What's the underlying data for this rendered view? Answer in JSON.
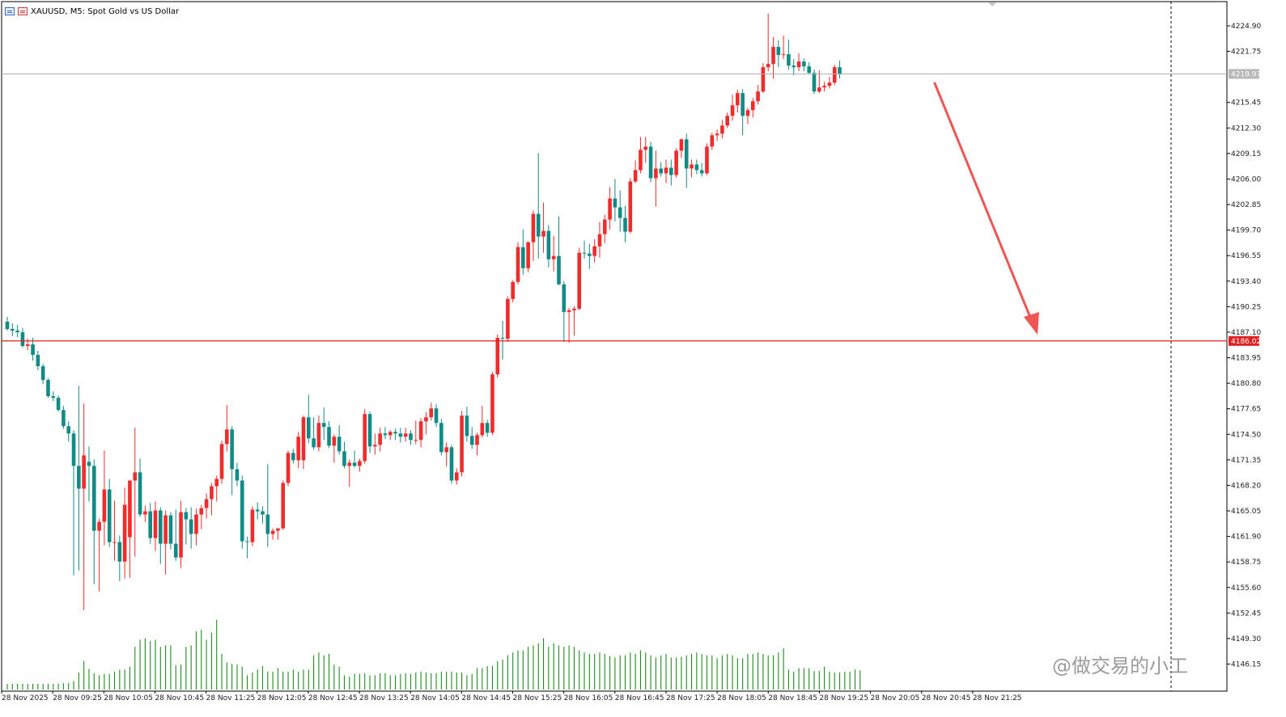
{
  "window": {
    "title": "XAUUSD, M5:  Spot Gold vs US Dollar"
  },
  "colors": {
    "bull": "#ef2b2b",
    "bear": "#128a86",
    "volume": "#1e8c1e",
    "price_line": "#e02020",
    "arrow": "#f05555",
    "current_line": "#b0b0b0",
    "current_tag_bg": "#b8b8b8"
  },
  "price_axis": {
    "labels": [
      "4224.90",
      "4221.75",
      "4215.45",
      "4212.30",
      "4209.15",
      "4206.00",
      "4202.85",
      "4199.70",
      "4196.55",
      "4193.40",
      "4190.25",
      "4187.10",
      "4183.95",
      "4180.80",
      "4177.65",
      "4174.50",
      "4171.35",
      "4168.20",
      "4165.05",
      "4161.90",
      "4158.75",
      "4155.60",
      "4152.45",
      "4149.30",
      "4146.15"
    ]
  },
  "time_axis": {
    "labels": [
      "28 Nov 2025",
      "28 Nov 09:25",
      "28 Nov 10:05",
      "28 Nov 10:45",
      "28 Nov 11:25",
      "28 Nov 12:05",
      "28 Nov 12:45",
      "28 Nov 13:25",
      "28 Nov 14:05",
      "28 Nov 14:45",
      "28 Nov 15:25",
      "28 Nov 16:05",
      "28 Nov 16:45",
      "28 Nov 17:25",
      "28 Nov 18:05",
      "28 Nov 18:45",
      "28 Nov 19:25",
      "28 Nov 20:05",
      "28 Nov 20:45",
      "28 Nov 21:25"
    ]
  },
  "levels": {
    "horizontal_line_price": "4186.02",
    "current_price": "4218.97"
  },
  "watermark": "@做交易的小工",
  "chart_data": {
    "type": "candlestick",
    "symbol": "XAUUSD",
    "timeframe": "M5",
    "ylim": [
      4146.0,
      4226.5
    ],
    "candles": [
      {
        "o": 4188.4,
        "h": 4189.0,
        "l": 4187.3,
        "c": 4187.5
      },
      {
        "o": 4187.5,
        "h": 4188.2,
        "l": 4186.6,
        "c": 4187.3
      },
      {
        "o": 4187.3,
        "h": 4188.0,
        "l": 4186.5,
        "c": 4187.1
      },
      {
        "o": 4187.1,
        "h": 4187.6,
        "l": 4185.2,
        "c": 4185.4
      },
      {
        "o": 4185.4,
        "h": 4186.3,
        "l": 4184.9,
        "c": 4185.6
      },
      {
        "o": 4185.6,
        "h": 4186.4,
        "l": 4183.6,
        "c": 4184.3
      },
      {
        "o": 4184.3,
        "h": 4184.8,
        "l": 4182.4,
        "c": 4182.9
      },
      {
        "o": 4182.9,
        "h": 4183.2,
        "l": 4180.7,
        "c": 4181.2
      },
      {
        "o": 4181.2,
        "h": 4181.4,
        "l": 4179.0,
        "c": 4179.2
      },
      {
        "o": 4179.2,
        "h": 4179.8,
        "l": 4178.6,
        "c": 4179.0
      },
      {
        "o": 4179.0,
        "h": 4179.3,
        "l": 4177.3,
        "c": 4177.5
      },
      {
        "o": 4177.5,
        "h": 4178.0,
        "l": 4175.2,
        "c": 4175.5
      },
      {
        "o": 4175.5,
        "h": 4176.1,
        "l": 4173.6,
        "c": 4174.6
      },
      {
        "o": 4174.6,
        "h": 4175.0,
        "l": 4157.1,
        "c": 4170.6
      },
      {
        "o": 4170.6,
        "h": 4180.5,
        "l": 4157.7,
        "c": 4167.8
      },
      {
        "o": 4167.8,
        "h": 4178.3,
        "l": 4152.8,
        "c": 4171.9
      },
      {
        "o": 4171.1,
        "h": 4173.0,
        "l": 4166.2,
        "c": 4170.6
      },
      {
        "o": 4170.6,
        "h": 4171.4,
        "l": 4156.0,
        "c": 4162.6
      },
      {
        "o": 4162.6,
        "h": 4164.1,
        "l": 4155.1,
        "c": 4163.7
      },
      {
        "o": 4163.7,
        "h": 4172.5,
        "l": 4160.8,
        "c": 4167.7
      },
      {
        "o": 4167.7,
        "h": 4169.0,
        "l": 4160.6,
        "c": 4161.2
      },
      {
        "o": 4161.2,
        "h": 4166.3,
        "l": 4158.9,
        "c": 4161.2
      },
      {
        "o": 4161.2,
        "h": 4162.0,
        "l": 4156.4,
        "c": 4158.8
      },
      {
        "o": 4158.8,
        "h": 4167.9,
        "l": 4156.7,
        "c": 4165.8
      },
      {
        "o": 4161.8,
        "h": 4168.0,
        "l": 4156.8,
        "c": 4168.8
      },
      {
        "o": 4168.8,
        "h": 4175.3,
        "l": 4159.4,
        "c": 4169.8
      },
      {
        "o": 4169.8,
        "h": 4171.5,
        "l": 4164.3,
        "c": 4164.6
      },
      {
        "o": 4164.6,
        "h": 4165.7,
        "l": 4163.7,
        "c": 4165.0
      },
      {
        "o": 4165.0,
        "h": 4166.0,
        "l": 4161.0,
        "c": 4161.7
      },
      {
        "o": 4161.7,
        "h": 4166.2,
        "l": 4160.1,
        "c": 4165.1
      },
      {
        "o": 4165.1,
        "h": 4165.5,
        "l": 4158.5,
        "c": 4161.0
      },
      {
        "o": 4161.0,
        "h": 4165.1,
        "l": 4157.2,
        "c": 4164.5
      },
      {
        "o": 4164.5,
        "h": 4164.9,
        "l": 4160.3,
        "c": 4161.0
      },
      {
        "o": 4161.0,
        "h": 4165.2,
        "l": 4158.9,
        "c": 4159.3
      },
      {
        "o": 4159.3,
        "h": 4166.3,
        "l": 4158.0,
        "c": 4164.9
      },
      {
        "o": 4164.9,
        "h": 4165.4,
        "l": 4160.9,
        "c": 4164.0
      },
      {
        "o": 4164.0,
        "h": 4165.5,
        "l": 4160.4,
        "c": 4162.2
      },
      {
        "o": 4162.2,
        "h": 4165.3,
        "l": 4160.8,
        "c": 4164.6
      },
      {
        "o": 4164.6,
        "h": 4165.8,
        "l": 4162.8,
        "c": 4165.4
      },
      {
        "o": 4165.4,
        "h": 4167.2,
        "l": 4164.1,
        "c": 4166.5
      },
      {
        "o": 4166.5,
        "h": 4168.5,
        "l": 4164.5,
        "c": 4168.1
      },
      {
        "o": 4168.1,
        "h": 4169.4,
        "l": 4166.2,
        "c": 4169.0
      },
      {
        "o": 4169.0,
        "h": 4173.7,
        "l": 4168.4,
        "c": 4173.3
      },
      {
        "o": 4173.3,
        "h": 4178.1,
        "l": 4172.4,
        "c": 4175.1
      },
      {
        "o": 4175.1,
        "h": 4175.5,
        "l": 4167.0,
        "c": 4170.2
      },
      {
        "o": 4170.2,
        "h": 4171.0,
        "l": 4168.1,
        "c": 4168.8
      },
      {
        "o": 4168.8,
        "h": 4169.4,
        "l": 4160.4,
        "c": 4161.3
      },
      {
        "o": 4161.3,
        "h": 4161.9,
        "l": 4159.2,
        "c": 4161.2
      },
      {
        "o": 4161.2,
        "h": 4165.6,
        "l": 4160.7,
        "c": 4165.2
      },
      {
        "o": 4165.2,
        "h": 4166.1,
        "l": 4164.0,
        "c": 4165.0
      },
      {
        "o": 4165.0,
        "h": 4165.6,
        "l": 4163.5,
        "c": 4164.6
      },
      {
        "o": 4164.6,
        "h": 4170.8,
        "l": 4160.6,
        "c": 4162.2
      },
      {
        "o": 4162.2,
        "h": 4162.9,
        "l": 4161.5,
        "c": 4162.6
      },
      {
        "o": 4162.6,
        "h": 4162.9,
        "l": 4161.5,
        "c": 4162.9
      },
      {
        "o": 4162.9,
        "h": 4168.8,
        "l": 4162.7,
        "c": 4168.5
      },
      {
        "o": 4168.5,
        "h": 4172.5,
        "l": 4168.1,
        "c": 4172.2
      },
      {
        "o": 4172.2,
        "h": 4172.7,
        "l": 4170.9,
        "c": 4171.3
      },
      {
        "o": 4171.3,
        "h": 4174.8,
        "l": 4170.3,
        "c": 4174.2
      },
      {
        "o": 4171.3,
        "h": 4176.8,
        "l": 4170.2,
        "c": 4176.6
      },
      {
        "o": 4176.6,
        "h": 4179.4,
        "l": 4173.4,
        "c": 4174.0
      },
      {
        "o": 4174.0,
        "h": 4176.6,
        "l": 4172.6,
        "c": 4172.9
      },
      {
        "o": 4172.9,
        "h": 4176.8,
        "l": 4172.4,
        "c": 4175.9
      },
      {
        "o": 4175.9,
        "h": 4177.8,
        "l": 4173.8,
        "c": 4175.4
      },
      {
        "o": 4175.4,
        "h": 4176.1,
        "l": 4172.8,
        "c": 4173.1
      },
      {
        "o": 4173.1,
        "h": 4174.5,
        "l": 4171.0,
        "c": 4174.2
      },
      {
        "o": 4174.2,
        "h": 4175.6,
        "l": 4172.0,
        "c": 4172.4
      },
      {
        "o": 4172.4,
        "h": 4173.6,
        "l": 4170.3,
        "c": 4170.6
      },
      {
        "o": 4170.6,
        "h": 4171.4,
        "l": 4168.0,
        "c": 4171.0
      },
      {
        "o": 4171.0,
        "h": 4172.5,
        "l": 4170.4,
        "c": 4170.6
      },
      {
        "o": 4170.6,
        "h": 4171.5,
        "l": 4169.9,
        "c": 4171.2
      },
      {
        "o": 4171.2,
        "h": 4177.6,
        "l": 4170.9,
        "c": 4177.0
      },
      {
        "o": 4177.0,
        "h": 4177.3,
        "l": 4172.2,
        "c": 4173.0
      },
      {
        "o": 4173.0,
        "h": 4174.6,
        "l": 4172.0,
        "c": 4173.2
      },
      {
        "o": 4173.2,
        "h": 4175.3,
        "l": 4172.4,
        "c": 4174.6
      },
      {
        "o": 4174.6,
        "h": 4175.4,
        "l": 4173.9,
        "c": 4174.4
      },
      {
        "o": 4174.4,
        "h": 4175.0,
        "l": 4173.8,
        "c": 4174.8
      },
      {
        "o": 4174.8,
        "h": 4175.2,
        "l": 4173.8,
        "c": 4174.6
      },
      {
        "o": 4174.6,
        "h": 4175.3,
        "l": 4173.5,
        "c": 4174.2
      },
      {
        "o": 4174.2,
        "h": 4175.3,
        "l": 4173.6,
        "c": 4174.6
      },
      {
        "o": 4174.6,
        "h": 4175.0,
        "l": 4173.2,
        "c": 4173.8
      },
      {
        "o": 4173.8,
        "h": 4176.2,
        "l": 4173.3,
        "c": 4173.8
      },
      {
        "o": 4173.8,
        "h": 4176.5,
        "l": 4172.9,
        "c": 4176.1
      },
      {
        "o": 4176.1,
        "h": 4177.2,
        "l": 4174.5,
        "c": 4176.6
      },
      {
        "o": 4176.6,
        "h": 4178.4,
        "l": 4176.2,
        "c": 4177.7
      },
      {
        "o": 4177.7,
        "h": 4178.2,
        "l": 4175.4,
        "c": 4175.9
      },
      {
        "o": 4175.9,
        "h": 4176.4,
        "l": 4171.9,
        "c": 4172.3
      },
      {
        "o": 4172.3,
        "h": 4173.5,
        "l": 4170.5,
        "c": 4172.9
      },
      {
        "o": 4172.9,
        "h": 4173.2,
        "l": 4168.4,
        "c": 4168.8
      },
      {
        "o": 4168.8,
        "h": 4170.3,
        "l": 4168.3,
        "c": 4169.8
      },
      {
        "o": 4169.8,
        "h": 4177.4,
        "l": 4169.3,
        "c": 4176.8
      },
      {
        "o": 4176.8,
        "h": 4177.9,
        "l": 4173.6,
        "c": 4174.3
      },
      {
        "o": 4174.3,
        "h": 4175.4,
        "l": 4172.7,
        "c": 4173.2
      },
      {
        "o": 4173.2,
        "h": 4174.7,
        "l": 4171.9,
        "c": 4174.4
      },
      {
        "o": 4174.4,
        "h": 4178.0,
        "l": 4174.1,
        "c": 4175.9
      },
      {
        "o": 4175.9,
        "h": 4176.3,
        "l": 4174.2,
        "c": 4174.7
      },
      {
        "o": 4174.7,
        "h": 4182.2,
        "l": 4174.4,
        "c": 4181.9
      },
      {
        "o": 4181.9,
        "h": 4186.8,
        "l": 4181.5,
        "c": 4186.4
      },
      {
        "o": 4186.4,
        "h": 4188.5,
        "l": 4183.7,
        "c": 4186.3
      },
      {
        "o": 4186.3,
        "h": 4191.5,
        "l": 4185.9,
        "c": 4191.2
      },
      {
        "o": 4191.2,
        "h": 4193.5,
        "l": 4190.8,
        "c": 4193.3
      },
      {
        "o": 4193.3,
        "h": 4198.2,
        "l": 4193.0,
        "c": 4197.6
      },
      {
        "o": 4197.6,
        "h": 4199.8,
        "l": 4194.2,
        "c": 4195.0
      },
      {
        "o": 4195.0,
        "h": 4198.3,
        "l": 4194.5,
        "c": 4198.2
      },
      {
        "o": 4198.2,
        "h": 4202.1,
        "l": 4195.9,
        "c": 4201.7
      },
      {
        "o": 4201.7,
        "h": 4209.2,
        "l": 4196.2,
        "c": 4198.9
      },
      {
        "o": 4198.9,
        "h": 4203.1,
        "l": 4196.9,
        "c": 4199.6
      },
      {
        "o": 4199.6,
        "h": 4200.3,
        "l": 4195.1,
        "c": 4196.1
      },
      {
        "o": 4196.1,
        "h": 4199.0,
        "l": 4194.6,
        "c": 4196.5
      },
      {
        "o": 4196.5,
        "h": 4201.4,
        "l": 4192.9,
        "c": 4193.0
      },
      {
        "o": 4193.0,
        "h": 4193.4,
        "l": 4185.9,
        "c": 4189.6
      },
      {
        "o": 4189.6,
        "h": 4190.1,
        "l": 4185.8,
        "c": 4189.8
      },
      {
        "o": 4189.8,
        "h": 4190.3,
        "l": 4186.7,
        "c": 4190.0
      },
      {
        "o": 4190.0,
        "h": 4197.5,
        "l": 4189.8,
        "c": 4196.9
      },
      {
        "o": 4196.9,
        "h": 4198.4,
        "l": 4196.2,
        "c": 4196.8
      },
      {
        "o": 4196.8,
        "h": 4198.0,
        "l": 4194.9,
        "c": 4196.5
      },
      {
        "o": 4196.5,
        "h": 4198.6,
        "l": 4195.7,
        "c": 4197.7
      },
      {
        "o": 4197.7,
        "h": 4200.7,
        "l": 4196.3,
        "c": 4199.2
      },
      {
        "o": 4199.2,
        "h": 4201.6,
        "l": 4198.1,
        "c": 4201.0
      },
      {
        "o": 4201.0,
        "h": 4205.0,
        "l": 4199.8,
        "c": 4203.6
      },
      {
        "o": 4203.6,
        "h": 4206.0,
        "l": 4200.8,
        "c": 4202.5
      },
      {
        "o": 4202.5,
        "h": 4204.6,
        "l": 4199.5,
        "c": 4201.2
      },
      {
        "o": 4201.2,
        "h": 4202.7,
        "l": 4198.2,
        "c": 4199.5
      },
      {
        "o": 4199.5,
        "h": 4206.1,
        "l": 4199.3,
        "c": 4205.7
      },
      {
        "o": 4205.7,
        "h": 4208.3,
        "l": 4205.5,
        "c": 4207.1
      },
      {
        "o": 4207.1,
        "h": 4211.2,
        "l": 4206.7,
        "c": 4209.6
      },
      {
        "o": 4209.6,
        "h": 4211.2,
        "l": 4208.0,
        "c": 4210.0
      },
      {
        "o": 4210.0,
        "h": 4210.6,
        "l": 4205.6,
        "c": 4206.1
      },
      {
        "o": 4206.1,
        "h": 4209.5,
        "l": 4202.6,
        "c": 4207.3
      },
      {
        "o": 4207.3,
        "h": 4208.1,
        "l": 4206.3,
        "c": 4206.7
      },
      {
        "o": 4206.7,
        "h": 4208.4,
        "l": 4205.5,
        "c": 4207.4
      },
      {
        "o": 4207.4,
        "h": 4208.4,
        "l": 4205.2,
        "c": 4206.5
      },
      {
        "o": 4206.5,
        "h": 4209.8,
        "l": 4206.2,
        "c": 4209.5
      },
      {
        "o": 4209.5,
        "h": 4211.0,
        "l": 4208.6,
        "c": 4210.9
      },
      {
        "o": 4210.9,
        "h": 4211.6,
        "l": 4204.9,
        "c": 4207.3
      },
      {
        "o": 4207.3,
        "h": 4208.4,
        "l": 4206.2,
        "c": 4207.8
      },
      {
        "o": 4207.8,
        "h": 4208.4,
        "l": 4206.6,
        "c": 4207.1
      },
      {
        "o": 4207.1,
        "h": 4208.0,
        "l": 4206.3,
        "c": 4206.7
      },
      {
        "o": 4206.7,
        "h": 4210.4,
        "l": 4206.5,
        "c": 4210.0
      },
      {
        "o": 4210.0,
        "h": 4211.7,
        "l": 4209.6,
        "c": 4211.4
      },
      {
        "o": 4211.4,
        "h": 4212.1,
        "l": 4210.7,
        "c": 4211.6
      },
      {
        "o": 4211.6,
        "h": 4213.3,
        "l": 4211.0,
        "c": 4212.6
      },
      {
        "o": 4212.6,
        "h": 4214.2,
        "l": 4212.3,
        "c": 4213.8
      },
      {
        "o": 4213.8,
        "h": 4216.4,
        "l": 4213.2,
        "c": 4215.1
      },
      {
        "o": 4215.1,
        "h": 4217.0,
        "l": 4214.2,
        "c": 4216.6
      },
      {
        "o": 4216.6,
        "h": 4217.1,
        "l": 4211.4,
        "c": 4213.8
      },
      {
        "o": 4213.8,
        "h": 4214.8,
        "l": 4212.8,
        "c": 4214.5
      },
      {
        "o": 4214.5,
        "h": 4216.0,
        "l": 4213.6,
        "c": 4215.6
      },
      {
        "o": 4215.6,
        "h": 4217.6,
        "l": 4215.2,
        "c": 4216.8
      },
      {
        "o": 4216.8,
        "h": 4220.3,
        "l": 4216.6,
        "c": 4219.8
      },
      {
        "o": 4219.8,
        "h": 4226.4,
        "l": 4219.3,
        "c": 4220.2
      },
      {
        "o": 4220.2,
        "h": 4223.5,
        "l": 4218.4,
        "c": 4222.3
      },
      {
        "o": 4222.3,
        "h": 4223.1,
        "l": 4219.8,
        "c": 4221.3
      },
      {
        "o": 4221.3,
        "h": 4223.7,
        "l": 4220.8,
        "c": 4221.4
      },
      {
        "o": 4221.4,
        "h": 4223.2,
        "l": 4219.5,
        "c": 4220.0
      },
      {
        "o": 4220.0,
        "h": 4220.8,
        "l": 4218.8,
        "c": 4219.8
      },
      {
        "o": 4219.8,
        "h": 4221.5,
        "l": 4219.3,
        "c": 4220.5
      },
      {
        "o": 4220.5,
        "h": 4220.9,
        "l": 4219.3,
        "c": 4219.9
      },
      {
        "o": 4219.9,
        "h": 4220.4,
        "l": 4219.0,
        "c": 4219.1
      },
      {
        "o": 4219.1,
        "h": 4219.5,
        "l": 4216.5,
        "c": 4216.8
      },
      {
        "o": 4216.8,
        "h": 4219.4,
        "l": 4216.6,
        "c": 4217.3
      },
      {
        "o": 4217.3,
        "h": 4218.0,
        "l": 4216.8,
        "c": 4217.5
      },
      {
        "o": 4217.5,
        "h": 4218.6,
        "l": 4217.2,
        "c": 4217.9
      },
      {
        "o": 4217.9,
        "h": 4220.1,
        "l": 4217.6,
        "c": 4219.8
      },
      {
        "o": 4219.8,
        "h": 4220.6,
        "l": 4218.4,
        "c": 4218.9
      }
    ],
    "volumes": [
      8,
      8,
      8,
      8,
      8,
      8,
      8,
      8,
      8,
      8,
      8,
      9,
      9,
      12,
      24,
      40,
      29,
      23,
      20,
      22,
      22,
      25,
      28,
      28,
      32,
      60,
      70,
      72,
      68,
      70,
      60,
      62,
      62,
      34,
      35,
      60,
      62,
      82,
      84,
      70,
      80,
      98,
      50,
      38,
      36,
      35,
      32,
      20,
      24,
      28,
      33,
      25,
      25,
      30,
      25,
      25,
      28,
      25,
      28,
      28,
      48,
      52,
      48,
      50,
      35,
      32,
      20,
      18,
      22,
      22,
      23,
      20,
      20,
      23,
      23,
      20,
      20,
      22,
      23,
      22,
      24,
      25,
      24,
      23,
      23,
      25,
      25,
      25,
      24,
      24,
      20,
      22,
      30,
      30,
      33,
      33,
      40,
      42,
      48,
      52,
      55,
      55,
      60,
      62,
      65,
      72,
      60,
      65,
      62,
      60,
      62,
      60,
      55,
      52,
      50,
      50,
      52,
      50,
      47,
      45,
      48,
      48,
      52,
      50,
      55,
      52,
      48,
      45,
      48,
      50,
      45,
      45,
      46,
      48,
      50,
      52,
      50,
      48,
      48,
      44,
      48,
      50,
      48,
      44,
      44,
      50,
      50,
      52,
      50,
      48,
      48,
      52,
      58,
      28,
      25,
      30,
      30,
      30,
      26,
      26,
      32,
      25,
      24,
      24,
      25,
      25,
      28,
      27
    ]
  }
}
